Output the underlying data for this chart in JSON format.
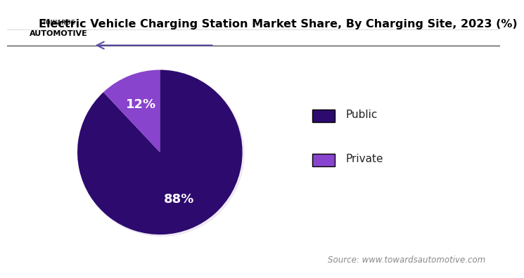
{
  "title": "Electric Vehicle Charging Station Market Share, By Charging Site, 2023 (%)",
  "slices": [
    88,
    12
  ],
  "labels": [
    "Public",
    "Private"
  ],
  "colors": [
    "#2d0a6e",
    "#8844cc"
  ],
  "pct_labels": [
    "88%",
    "12%"
  ],
  "pct_colors": [
    "white",
    "white"
  ],
  "legend_labels": [
    "Public",
    "Private"
  ],
  "legend_colors": [
    "#2d0a6e",
    "#8844cc"
  ],
  "source_text": "Source: www.towardsautomotive.com",
  "background_color": "#ffffff",
  "title_fontsize": 11.5,
  "legend_fontsize": 11,
  "pct_fontsize": 13,
  "source_fontsize": 8.5,
  "startangle": 90,
  "arrow_color": "#5b4ea8",
  "line_color": "#333333"
}
